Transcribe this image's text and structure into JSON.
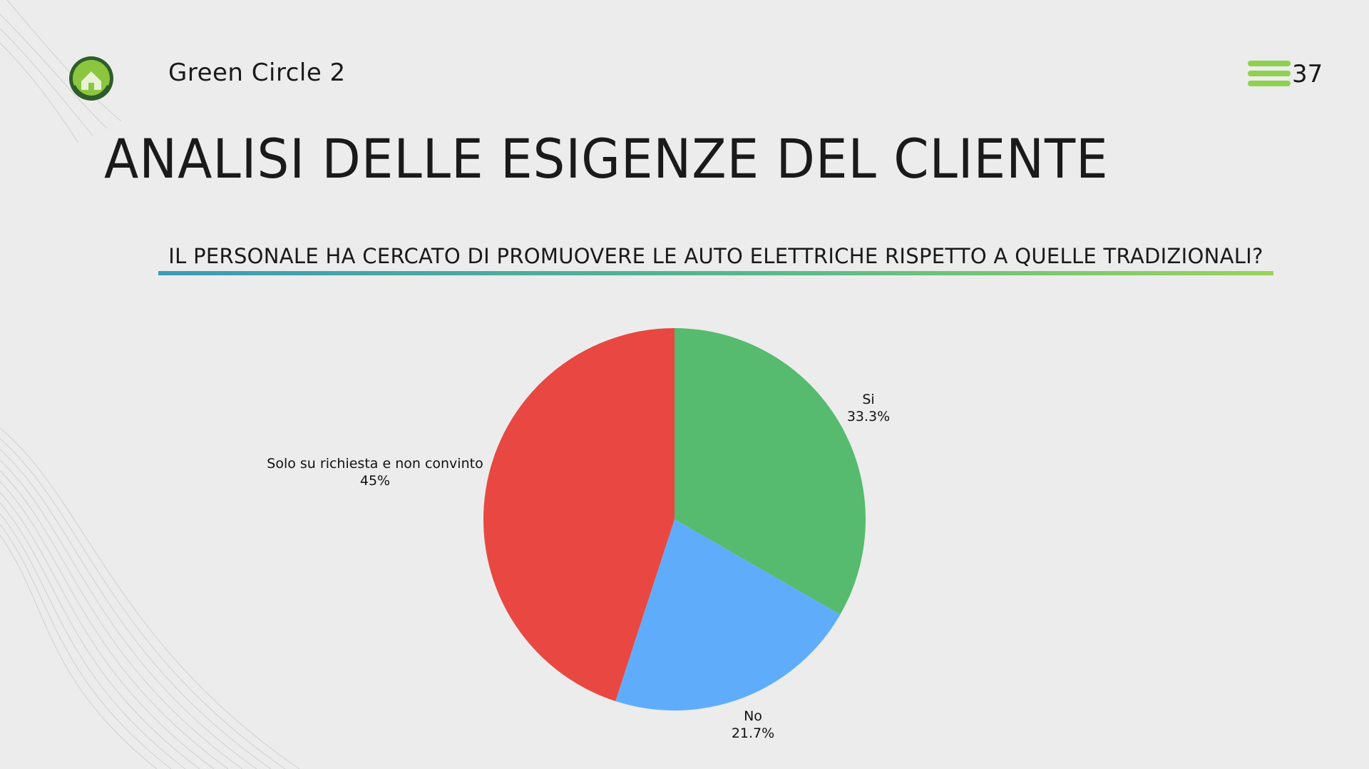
{
  "header": {
    "brand": "Green Circle 2",
    "logo_text": "Green Circle",
    "slide_number": "37",
    "menu_icon": "hamburger-icon",
    "accent_color": "#8fd14f"
  },
  "slide": {
    "title": "ANALISI DELLE ESIGENZE DEL CLIENTE",
    "question": "IL PERSONALE HA CERCATO DI PROMUOVERE LE AUTO ELETTRICHE RISPETTO A QUELLE TRADIZIONALI?"
  },
  "chart_data": {
    "type": "pie",
    "title": "",
    "slices": [
      {
        "label": "Si",
        "value": 33.3,
        "display": "33.3%",
        "color": "#56bb6e"
      },
      {
        "label": "No",
        "value": 21.7,
        "display": "21.7%",
        "color": "#5fadfa"
      },
      {
        "label": "Solo su richiesta e non convinto",
        "value": 45,
        "display": "45%",
        "color": "#e84841"
      }
    ],
    "start_angle": "12 o'clock",
    "direction": "clockwise",
    "legend": "none"
  }
}
